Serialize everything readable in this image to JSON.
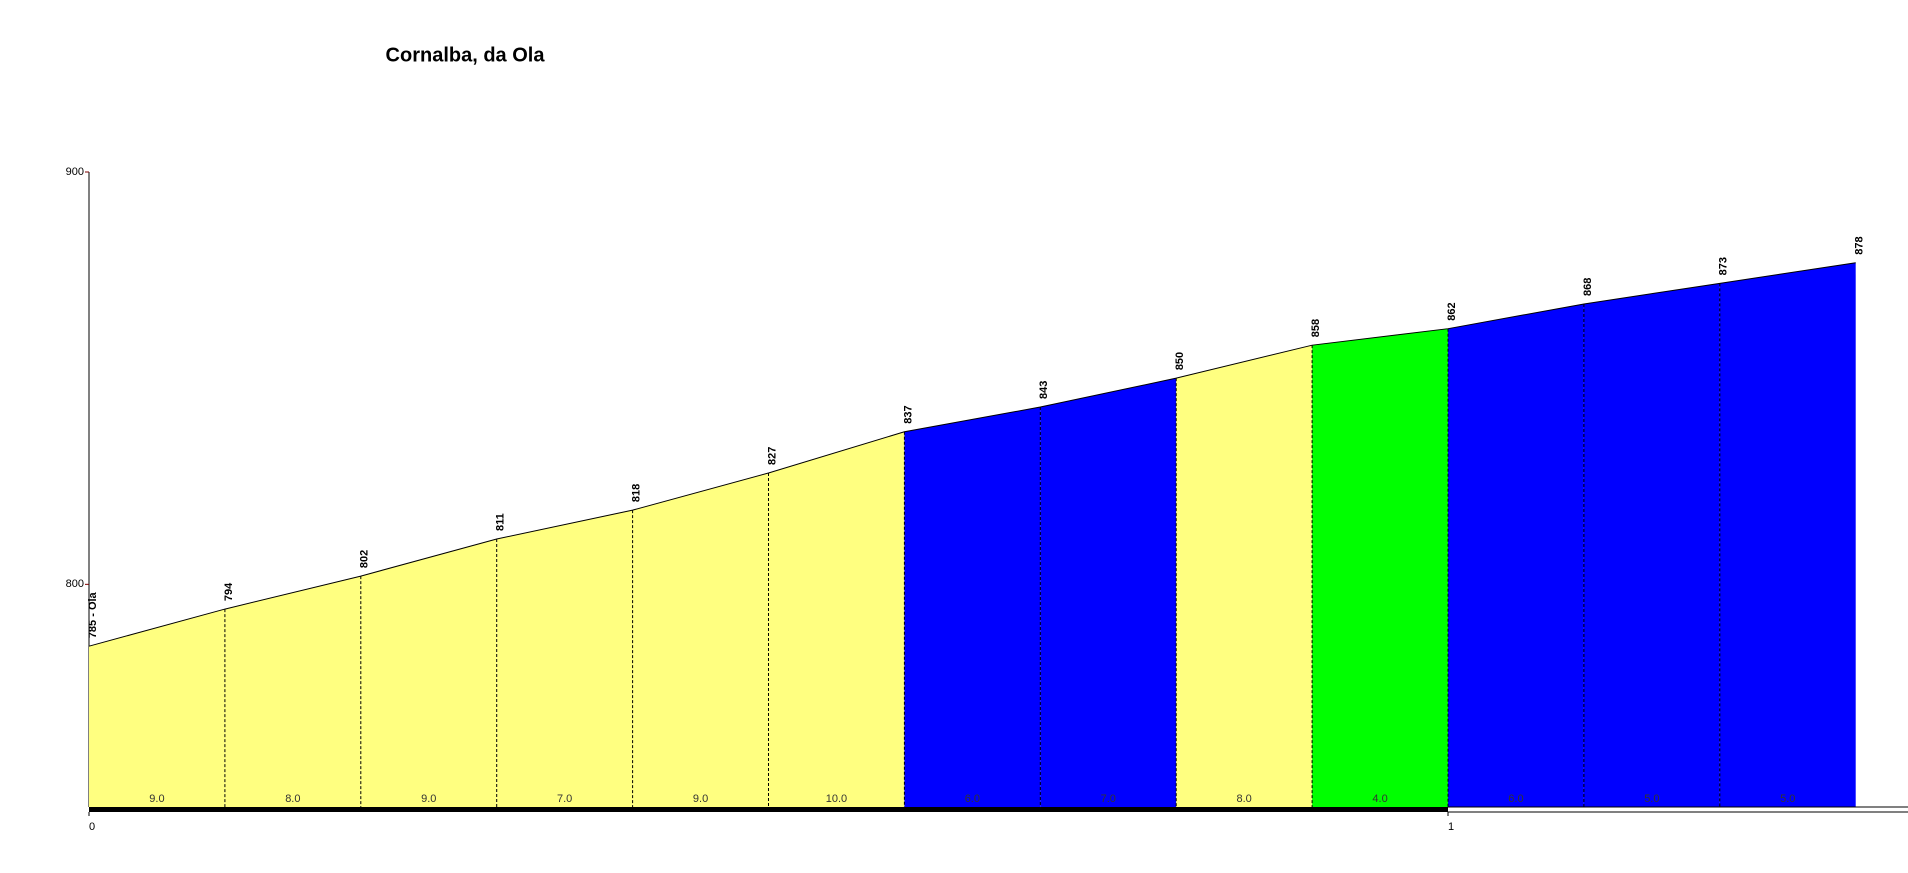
{
  "chart_data": {
    "type": "area",
    "title": "Cornalba, da Ola",
    "x": [
      0,
      0.1,
      0.2,
      0.3,
      0.4,
      0.5,
      0.6,
      0.7,
      0.8,
      0.9,
      1.0,
      1.1,
      1.2,
      1.3
    ],
    "values": [
      785,
      794,
      802,
      811,
      818,
      827,
      837,
      843,
      850,
      858,
      862,
      868,
      873,
      878
    ],
    "value_labels": [
      "785 - Ola",
      "794",
      "802",
      "811",
      "818",
      "827",
      "837",
      "843",
      "850",
      "858",
      "862",
      "868",
      "873",
      "878"
    ],
    "segments": {
      "values": [
        9,
        8,
        9,
        7,
        9,
        10,
        6,
        7,
        8,
        4,
        6,
        5,
        5
      ],
      "value_labels": [
        "9.0",
        "8.0",
        "9.0",
        "7.0",
        "9.0",
        "10.0",
        "6.0",
        "7.0",
        "8.0",
        "4.0",
        "6.0",
        "5.0",
        "5.0"
      ],
      "colors": [
        "#ffff80",
        "#ffff80",
        "#ffff80",
        "#ffff80",
        "#ffff80",
        "#ffff80",
        "#0000ff",
        "#0000ff",
        "#ffff80",
        "#00ff00",
        "#0000ff",
        "#0000ff",
        "#0000ff"
      ]
    },
    "xlim": [
      0,
      1.34
    ],
    "xticks": [
      0,
      1
    ],
    "ylim": [
      746,
      900
    ],
    "yticks": [
      800,
      900
    ]
  }
}
